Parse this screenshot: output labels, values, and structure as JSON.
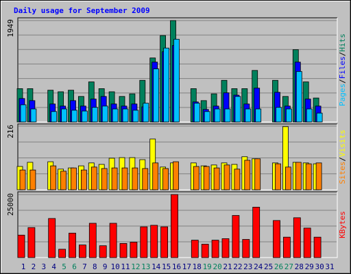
{
  "title": "Daily usage for September 2009",
  "legend_separator": "/",
  "chart_data": [
    {
      "type": "bar",
      "ylim": [
        0,
        1949
      ],
      "yticks": [
        1949
      ],
      "series": [
        {
          "name": "Hits",
          "color": "#00805c",
          "values": [
            640,
            640,
            null,
            610,
            580,
            610,
            490,
            770,
            640,
            580,
            490,
            540,
            800,
            1230,
            1660,
            1949,
            null,
            640,
            410,
            540,
            800,
            640,
            640,
            990,
            null,
            800,
            490,
            1390,
            770,
            460,
            null
          ]
        },
        {
          "name": "Files",
          "color": "#0000ff",
          "values": [
            450,
            410,
            null,
            345,
            305,
            410,
            305,
            440,
            490,
            345,
            305,
            345,
            290,
            1150,
            1350,
            1470,
            null,
            385,
            240,
            305,
            560,
            515,
            345,
            650,
            null,
            570,
            305,
            1150,
            440,
            305,
            null
          ]
        },
        {
          "name": "Pages",
          "color": "#00c0ff",
          "values": [
            330,
            250,
            null,
            200,
            250,
            225,
            210,
            280,
            305,
            250,
            250,
            225,
            360,
            1020,
            1420,
            1590,
            null,
            360,
            200,
            250,
            250,
            490,
            250,
            250,
            null,
            280,
            250,
            970,
            250,
            170,
            null
          ]
        }
      ]
    },
    {
      "type": "bar",
      "ylim": [
        0,
        216
      ],
      "yticks": [
        216
      ],
      "series": [
        {
          "name": "Visits",
          "color": "#ffff00",
          "values": [
            79,
            93,
            null,
            95,
            70,
            74,
            81,
            91,
            86,
            107,
            109,
            109,
            102,
            172,
            77,
            91,
            null,
            91,
            81,
            84,
            91,
            86,
            112,
            105,
            null,
            91,
            214,
            93,
            91,
            88,
            null
          ]
        },
        {
          "name": "Sites",
          "color": "#ff8000",
          "values": [
            67,
            67,
            null,
            81,
            63,
            74,
            67,
            77,
            72,
            74,
            74,
            74,
            72,
            91,
            72,
            95,
            null,
            79,
            79,
            74,
            84,
            70,
            100,
            105,
            null,
            88,
            77,
            93,
            88,
            91,
            null
          ]
        }
      ]
    },
    {
      "type": "bar",
      "ylim": [
        0,
        25000
      ],
      "yticks": [
        25000
      ],
      "categories": [
        "1",
        "2",
        "3",
        "4",
        "5",
        "6",
        "7",
        "8",
        "9",
        "10",
        "11",
        "12",
        "13",
        "14",
        "15",
        "16",
        "17",
        "18",
        "19",
        "20",
        "21",
        "22",
        "23",
        "24",
        "25",
        "26",
        "27",
        "28",
        "29",
        "30",
        "31"
      ],
      "category_colors": [
        "#000080",
        "#000080",
        "#000080",
        "#000080",
        "#00805c",
        "#00805c",
        "#000080",
        "#000080",
        "#000080",
        "#000080",
        "#000080",
        "#00805c",
        "#00805c",
        "#000080",
        "#000080",
        "#000080",
        "#000080",
        "#000080",
        "#00805c",
        "#00805c",
        "#000080",
        "#000080",
        "#000080",
        "#000080",
        "#000080",
        "#00805c",
        "#00805c",
        "#000080",
        "#000080",
        "#000080",
        "#000080"
      ],
      "series": [
        {
          "name": "KBytes",
          "color": "#ff0000",
          "values": [
            8900,
            11900,
            null,
            15500,
            3300,
            9700,
            5000,
            13600,
            4700,
            13600,
            5600,
            6100,
            12200,
            12800,
            12200,
            25000,
            null,
            6900,
            5300,
            6900,
            7500,
            16700,
            7200,
            20000,
            null,
            14700,
            8100,
            15800,
            11700,
            8100,
            null
          ]
        }
      ]
    }
  ]
}
